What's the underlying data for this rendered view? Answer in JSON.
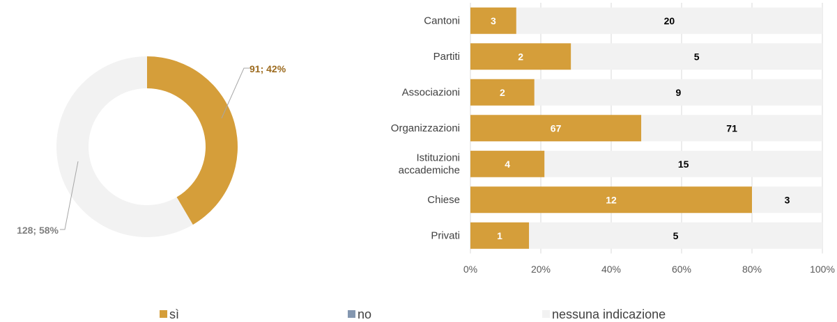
{
  "colors": {
    "si": "#D59E3A",
    "no": "#8497B0",
    "nessuna": "#F2F2F2",
    "grid": "#D9D9D9",
    "donut_label_si": "#9C6B1F",
    "donut_label_nessuna": "#7F7F7F",
    "leader": "#A6A6A6"
  },
  "legend": [
    {
      "label": "sì",
      "color_key": "si"
    },
    {
      "label": "no",
      "color_key": "no"
    },
    {
      "label": "nessuna indicazione",
      "color_key": "nessuna"
    }
  ],
  "chart_data": [
    {
      "type": "pie",
      "style": "donut",
      "slices": [
        {
          "name": "sì",
          "value": 91,
          "percent": 42,
          "label": "91; 42%",
          "color_key": "si"
        },
        {
          "name": "nessuna indicazione",
          "value": 128,
          "percent": 58,
          "label": "128; 58%",
          "color_key": "nessuna"
        }
      ]
    },
    {
      "type": "bar",
      "orientation": "horizontal",
      "stacked": "percent",
      "categories": [
        [
          "Cantoni"
        ],
        [
          "Partiti"
        ],
        [
          "Associazioni"
        ],
        [
          "Organizzazioni"
        ],
        [
          "Istituzioni",
          "accademiche"
        ],
        [
          "Chiese"
        ],
        [
          "Privati"
        ]
      ],
      "series": [
        {
          "name": "sì",
          "color_key": "si",
          "values": [
            3,
            2,
            2,
            67,
            4,
            12,
            1
          ]
        },
        {
          "name": "no",
          "color_key": "no",
          "values": [
            0,
            0,
            0,
            0,
            0,
            0,
            0
          ]
        },
        {
          "name": "nessuna indicazione",
          "color_key": "nessuna",
          "values": [
            20,
            5,
            9,
            71,
            15,
            3,
            5
          ]
        }
      ],
      "xticks": [
        "0%",
        "20%",
        "40%",
        "60%",
        "80%",
        "100%"
      ],
      "xlim": [
        0,
        100
      ],
      "grid": true
    }
  ]
}
